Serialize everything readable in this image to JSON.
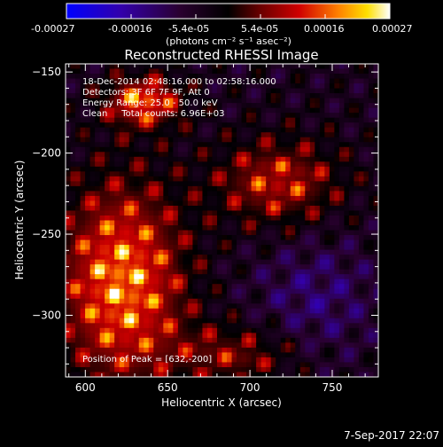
{
  "chart_data": {
    "type": "heatmap",
    "title": "Reconstructed RHESSI Image",
    "xlabel": "Heliocentric X (arcsec)",
    "ylabel": "Heliocentric Y (arcsec)",
    "xlim": [
      588,
      778
    ],
    "ylim": [
      -338,
      -145
    ],
    "x_ticks": [
      600,
      650,
      700,
      750
    ],
    "y_ticks": [
      -150,
      -200,
      -250,
      -300
    ],
    "colorbar": {
      "ticks": [
        "-0.00027",
        "-0.00016",
        "-5.4e-05",
        "5.4e-05",
        "0.00016",
        "0.00027"
      ],
      "range": [
        -0.00027,
        0.00027
      ],
      "unit_label": "(photons cm⁻² s⁻¹ asec⁻²)"
    },
    "annotations": [
      "18-Dec-2014 02:48:16.000 to 02:58:16.000",
      "Detectors: 3F 6F 7F 9F, Att 0",
      "Energy Range: 25.0 - 50.0 keV",
      "Clean     Total counts: 6.96E+03"
    ],
    "peak_label": "Position of Peak = [632,-200]",
    "timestamp": "7-Sep-2017 22:07"
  }
}
